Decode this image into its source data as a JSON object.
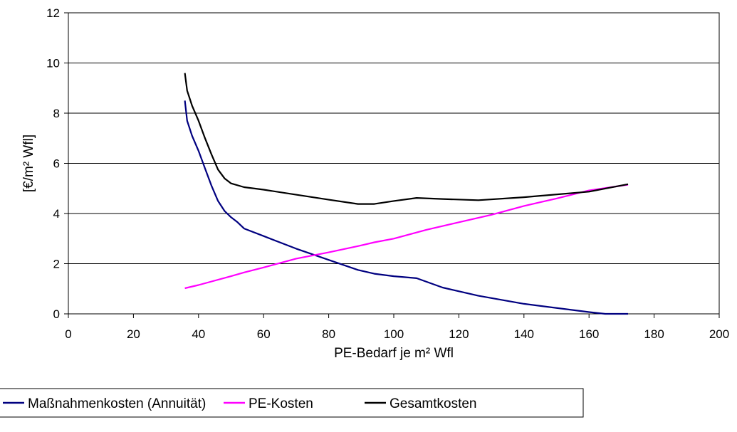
{
  "chart_data": {
    "type": "line",
    "title": "",
    "xlabel": "PE-Bedarf je m² Wfl",
    "ylabel": "[€/m² Wfl]",
    "xlim": [
      0,
      200
    ],
    "ylim": [
      0,
      12
    ],
    "xticks": [
      0,
      20,
      40,
      60,
      80,
      100,
      120,
      140,
      160,
      180,
      200
    ],
    "yticks": [
      0,
      2,
      4,
      6,
      8,
      10,
      12
    ],
    "grid": "horizontal",
    "legend_position": "bottom",
    "series": [
      {
        "name": "Maßnahmenkosten (Annuität)",
        "color": "#000080",
        "points": [
          [
            35.8,
            8.5
          ],
          [
            36.5,
            7.7
          ],
          [
            38,
            7.1
          ],
          [
            40,
            6.5
          ],
          [
            42,
            5.8
          ],
          [
            44,
            5.1
          ],
          [
            46,
            4.5
          ],
          [
            48,
            4.1
          ],
          [
            50,
            3.85
          ],
          [
            52,
            3.65
          ],
          [
            54,
            3.4
          ],
          [
            60,
            3.1
          ],
          [
            70,
            2.6
          ],
          [
            80,
            2.15
          ],
          [
            89,
            1.75
          ],
          [
            94,
            1.6
          ],
          [
            100,
            1.5
          ],
          [
            107,
            1.42
          ],
          [
            115,
            1.05
          ],
          [
            126,
            0.72
          ],
          [
            140,
            0.4
          ],
          [
            160,
            0.07
          ],
          [
            165,
            0.0
          ],
          [
            172,
            0.0
          ]
        ]
      },
      {
        "name": "PE-Kosten",
        "color": "#ff00ff",
        "points": [
          [
            35.8,
            1.02
          ],
          [
            40,
            1.15
          ],
          [
            50,
            1.5
          ],
          [
            54,
            1.65
          ],
          [
            60,
            1.85
          ],
          [
            70,
            2.2
          ],
          [
            80,
            2.45
          ],
          [
            89,
            2.7
          ],
          [
            94,
            2.85
          ],
          [
            100,
            3.0
          ],
          [
            110,
            3.35
          ],
          [
            120,
            3.65
          ],
          [
            130,
            3.95
          ],
          [
            140,
            4.3
          ],
          [
            150,
            4.6
          ],
          [
            160,
            4.92
          ],
          [
            172,
            5.15
          ]
        ]
      },
      {
        "name": "Gesamtkosten",
        "color": "#000000",
        "points": [
          [
            35.8,
            9.6
          ],
          [
            36.5,
            8.9
          ],
          [
            38,
            8.3
          ],
          [
            40,
            7.7
          ],
          [
            42,
            7.0
          ],
          [
            44,
            6.35
          ],
          [
            46,
            5.75
          ],
          [
            48,
            5.4
          ],
          [
            50,
            5.2
          ],
          [
            54,
            5.05
          ],
          [
            60,
            4.95
          ],
          [
            70,
            4.75
          ],
          [
            80,
            4.55
          ],
          [
            89,
            4.38
          ],
          [
            94,
            4.38
          ],
          [
            100,
            4.5
          ],
          [
            107,
            4.62
          ],
          [
            115,
            4.58
          ],
          [
            126,
            4.53
          ],
          [
            140,
            4.65
          ],
          [
            160,
            4.87
          ],
          [
            172,
            5.17
          ]
        ]
      }
    ]
  }
}
